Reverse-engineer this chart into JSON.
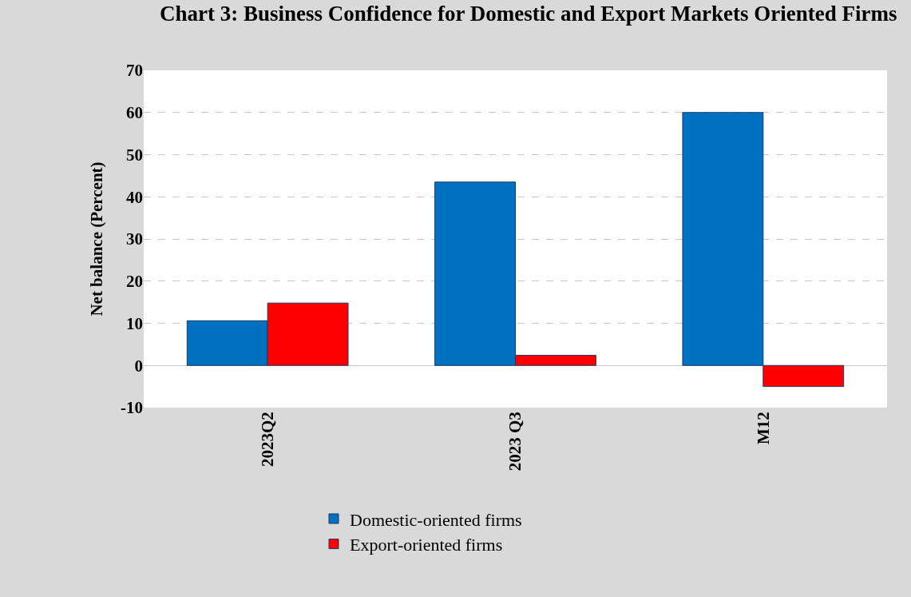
{
  "chart_data": {
    "type": "bar",
    "title": "Chart 3: Business Confidence for Domestic and Export Markets Oriented Firms",
    "ylabel": "Net balance (Percent)",
    "categories": [
      "2023Q2",
      "2023 Q3",
      "M12"
    ],
    "series": [
      {
        "name": "Domestic-oriented firms",
        "color": "#0070c0",
        "values": [
          10.6,
          43.5,
          60
        ]
      },
      {
        "name": "Export-oriented firms",
        "color": "#ff0000",
        "values": [
          14.8,
          2.4,
          -5
        ]
      }
    ],
    "ylim": [
      -10,
      70
    ],
    "yticks": [
      -10,
      0,
      10,
      20,
      30,
      40,
      50,
      60,
      70
    ],
    "grid": "y",
    "legend": "bottom"
  }
}
